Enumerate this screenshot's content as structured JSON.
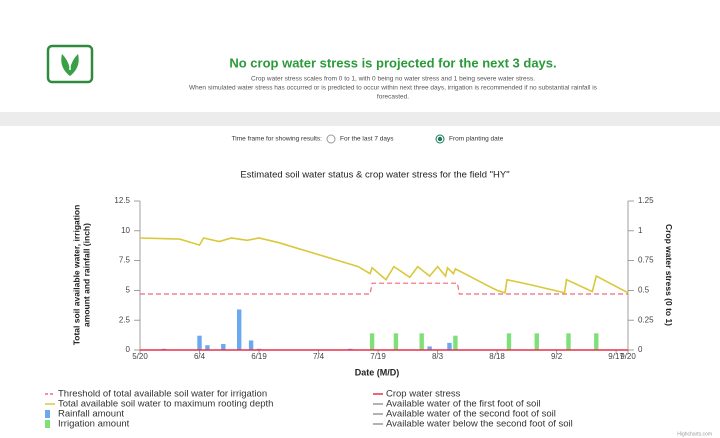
{
  "header": {
    "title": "No crop water stress is projected for the next 3 days.",
    "subtitle_lines": [
      "Crop water stress scales from 0 to 1, with 0 being no water stress and 1 being severe water stress.",
      "When simulated water stress has occurred or is predicted to occur within next three days, irrigation is recommended if no substantial rainfall is",
      "forecasted."
    ]
  },
  "time_frame": {
    "label": "Time frame for showing results:",
    "options": [
      {
        "label": "For the last 7 days",
        "selected": false
      },
      {
        "label": "From planting date",
        "selected": true
      }
    ]
  },
  "chart_data": {
    "type": "line",
    "title": "Estimated soil water status & crop water stress for the field \"HY\"",
    "x_label": "Date (M/D)",
    "y_label": [
      "Total soil available water, irrigation",
      "amount and rainfall (inch)"
    ],
    "y2_label": "Crop water stress (0 to 1)",
    "credit": "Highcharts.com",
    "xlim": [
      0,
      123
    ],
    "xticks": [
      {
        "value": 0,
        "label": "5/20"
      },
      {
        "value": 15,
        "label": "6/4"
      },
      {
        "value": 30,
        "label": "6/19"
      },
      {
        "value": 45,
        "label": "7/4"
      },
      {
        "value": 60,
        "label": "7/19"
      },
      {
        "value": 75,
        "label": "8/3"
      },
      {
        "value": 90,
        "label": "8/18"
      },
      {
        "value": 105,
        "label": "9/2"
      },
      {
        "value": 120,
        "label": "9/17"
      },
      {
        "value": 123,
        "label": "9/20"
      }
    ],
    "ylim": [
      0,
      12.5
    ],
    "yticks": [
      0,
      2.5,
      5,
      7.5,
      10,
      12.5
    ],
    "y2lim": [
      0,
      1.25
    ],
    "y2ticks": [
      0,
      0.25,
      0.5,
      0.75,
      1,
      1.25
    ],
    "series": [
      {
        "name": "Threshold of total available soil water for irrigation",
        "type": "line",
        "dash": true,
        "color": "#f06a7a",
        "x": [
          0,
          58,
          58.5,
          80,
          80.5,
          123
        ],
        "values": [
          4.7,
          4.7,
          5.6,
          5.6,
          4.7,
          4.7
        ]
      },
      {
        "name": "Total available soil water to maximum rooting depth",
        "type": "line",
        "dash": false,
        "color": "#d9c93a",
        "x": [
          0,
          10,
          15,
          16,
          20,
          23,
          27,
          30,
          35,
          40,
          45,
          50,
          55,
          58,
          58.5,
          62,
          64,
          68,
          70,
          73,
          75,
          77,
          77.5,
          79,
          79.5,
          83,
          87,
          90,
          92,
          92.5,
          98,
          107,
          107.5,
          114,
          115,
          123
        ],
        "values": [
          9.4,
          9.3,
          8.8,
          9.4,
          9.1,
          9.4,
          9.2,
          9.4,
          9.0,
          8.5,
          8.0,
          7.5,
          7.0,
          6.4,
          6.9,
          5.9,
          7.0,
          6.1,
          7.0,
          6.2,
          7.0,
          6.2,
          6.9,
          6.4,
          6.8,
          6.2,
          5.5,
          5.0,
          4.8,
          5.9,
          5.5,
          4.8,
          5.9,
          4.9,
          6.2,
          4.8
        ]
      },
      {
        "name": "Rainfall amount",
        "type": "bar",
        "color": "#6aa8f0",
        "x": [
          6,
          15,
          17,
          21,
          25,
          28,
          30,
          53,
          73,
          78
        ],
        "values": [
          0.1,
          1.2,
          0.4,
          0.5,
          3.4,
          0.8,
          0.1,
          0.1,
          0.3,
          0.6
        ]
      },
      {
        "name": "Irrigation amount",
        "type": "bar",
        "color": "#7fe07a",
        "x": [
          58.5,
          64.5,
          71,
          79.5,
          93,
          100,
          108,
          115
        ],
        "values": [
          1.4,
          1.4,
          1.4,
          1.2,
          1.4,
          1.4,
          1.4,
          1.4
        ]
      },
      {
        "name": "Crop water stress",
        "type": "line",
        "dash": false,
        "axis": "y2",
        "color": "#e8304a",
        "x": [
          0,
          123
        ],
        "values": [
          0,
          0
        ]
      },
      {
        "name": "Available water of the first foot of soil",
        "type": "line",
        "dash": false,
        "color": "#999999",
        "x": [],
        "values": []
      },
      {
        "name": "Available water of the second foot of soil",
        "type": "line",
        "dash": false,
        "color": "#999999",
        "x": [],
        "values": []
      },
      {
        "name": "Available water below the second foot of soil",
        "type": "line",
        "dash": false,
        "color": "#999999",
        "x": [],
        "values": []
      }
    ]
  }
}
